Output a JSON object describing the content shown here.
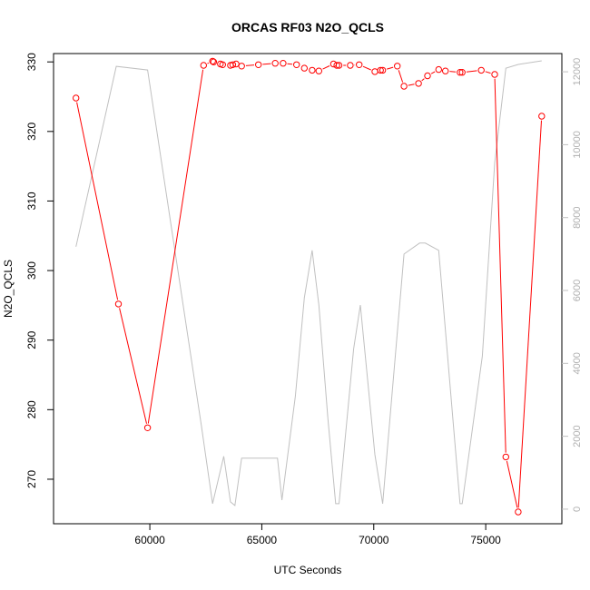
{
  "chart_data": {
    "type": "line",
    "title": "ORCAS RF03 N2O_QCLS",
    "xlabel": "UTC Seconds",
    "ylabel": "N2O_QCLS",
    "xlim": [
      55700,
      78400
    ],
    "ylim": [
      263.6,
      331.2
    ],
    "y2lim": [
      -400,
      12500
    ],
    "x_ticks": [
      60000,
      65000,
      70000,
      75000
    ],
    "y_ticks": [
      270,
      280,
      290,
      300,
      310,
      320,
      330
    ],
    "y2_ticks": [
      0,
      2000,
      4000,
      6000,
      8000,
      10000,
      12000
    ],
    "grid": false,
    "colors": {
      "primary": "#ff0000",
      "secondary": "#c0c0c0"
    },
    "series": [
      {
        "role": "primary",
        "x": [
          56700,
          58600,
          59900,
          62400,
          62800,
          62850,
          63150,
          63250,
          63600,
          63700,
          63850,
          64100,
          64850,
          65600,
          65950,
          66550,
          66900,
          67250,
          67550,
          68200,
          68350,
          68450,
          68950,
          69350,
          70050,
          70300,
          70400,
          71050,
          71350,
          72000,
          72400,
          72900,
          73200,
          73850,
          73950,
          74800,
          75400,
          75900,
          76450,
          77500
        ],
        "y": [
          324.8,
          295.2,
          277.4,
          329.5,
          330.1,
          330.0,
          329.7,
          329.6,
          329.5,
          329.6,
          329.7,
          329.4,
          329.6,
          329.8,
          329.8,
          329.6,
          329.1,
          328.8,
          328.7,
          329.7,
          329.5,
          329.5,
          329.5,
          329.6,
          328.6,
          328.8,
          328.8,
          329.4,
          326.5,
          326.9,
          328.0,
          328.9,
          328.7,
          328.5,
          328.5,
          328.8,
          328.2,
          273.2,
          265.3,
          322.2
        ]
      },
      {
        "role": "secondary",
        "x": [
          56700,
          58500,
          59900,
          62300,
          62800,
          63300,
          63600,
          63800,
          64100,
          65100,
          65700,
          65900,
          66500,
          66900,
          67250,
          67550,
          67950,
          68300,
          68450,
          69100,
          69400,
          70050,
          70400,
          71350,
          72050,
          72300,
          72900,
          73850,
          73950,
          74850,
          75400,
          75900,
          76450,
          77500
        ],
        "y": [
          7200,
          12150,
          12050,
          2300,
          150,
          1450,
          200,
          100,
          1400,
          1400,
          1400,
          250,
          3100,
          5800,
          7100,
          5600,
          2500,
          150,
          150,
          4400,
          5600,
          1500,
          150,
          7000,
          7300,
          7300,
          7100,
          150,
          150,
          4200,
          9500,
          12100,
          12200,
          12300
        ]
      }
    ]
  }
}
